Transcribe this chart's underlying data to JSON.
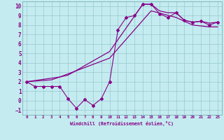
{
  "xlabel": "Windchill (Refroidissement éolien,°C)",
  "bg_color": "#c4ecf0",
  "grid_color": "#9ecdd4",
  "line_color": "#880088",
  "y_jagged": [
    2.0,
    1.5,
    1.5,
    1.5,
    1.5,
    0.2,
    -0.8,
    0.1,
    -0.5,
    0.2,
    2.0,
    7.5,
    8.8,
    9.0,
    10.2,
    10.2,
    9.2,
    8.8,
    9.3,
    8.5,
    8.3,
    8.4,
    8.0,
    8.3
  ],
  "x_smooth1": [
    0,
    3,
    4,
    5,
    10,
    14,
    15,
    16,
    17,
    18,
    19,
    20,
    21,
    22,
    23
  ],
  "y_smooth1": [
    2.0,
    2.2,
    2.5,
    2.7,
    5.2,
    10.2,
    10.2,
    9.5,
    9.3,
    9.3,
    8.5,
    8.3,
    8.4,
    8.2,
    8.3
  ],
  "x_smooth2": [
    0,
    4,
    10,
    15,
    18,
    20,
    21,
    22,
    23
  ],
  "y_smooth2": [
    2.0,
    2.5,
    4.5,
    9.5,
    8.8,
    8.0,
    7.9,
    7.8,
    7.8
  ],
  "ylim": [
    -1.5,
    10.5
  ],
  "xlim": [
    -0.5,
    23.5
  ],
  "yticks": [
    -1,
    0,
    1,
    2,
    3,
    4,
    5,
    6,
    7,
    8,
    9,
    10
  ],
  "xticks": [
    0,
    1,
    2,
    3,
    4,
    5,
    6,
    7,
    8,
    9,
    10,
    11,
    12,
    13,
    14,
    15,
    16,
    17,
    18,
    19,
    20,
    21,
    22,
    23
  ]
}
